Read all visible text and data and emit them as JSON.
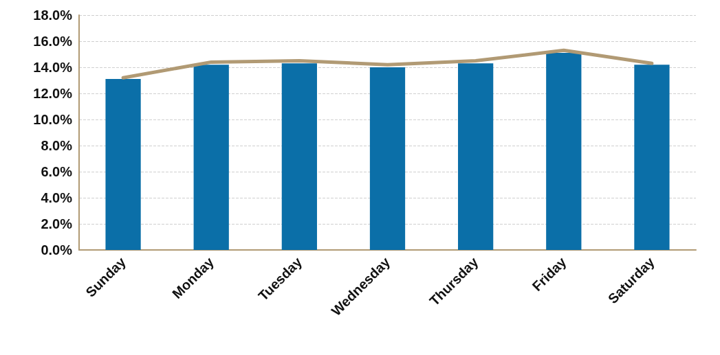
{
  "chart_data": {
    "type": "bar",
    "categories": [
      "Sunday",
      "Monday",
      "Tuesday",
      "Wednesday",
      "Thursday",
      "Friday",
      "Saturday"
    ],
    "series": [
      {
        "color": "#0b6fa8",
        "values": [
          13.1,
          14.2,
          14.3,
          14.0,
          14.3,
          15.1,
          14.2
        ]
      },
      {
        "type": "line",
        "color": "#b19a74",
        "values": [
          13.2,
          14.4,
          14.5,
          14.2,
          14.5,
          15.3,
          14.3
        ]
      }
    ],
    "ylim": [
      0,
      18
    ],
    "yticks": [
      {
        "value": 0,
        "label": "0.0%"
      },
      {
        "value": 2,
        "label": "2.0%"
      },
      {
        "value": 4,
        "label": "4.0%"
      },
      {
        "value": 6,
        "label": "6.0%"
      },
      {
        "value": 8,
        "label": "8.0%"
      },
      {
        "value": 10,
        "label": "10.0%"
      },
      {
        "value": 12,
        "label": "12.0%"
      },
      {
        "value": 14,
        "label": "14.0%"
      },
      {
        "value": 16,
        "label": "16.0%"
      },
      {
        "value": 18,
        "label": "18.0%"
      }
    ],
    "grid": "y",
    "marker": "none",
    "line_style": "solid"
  }
}
